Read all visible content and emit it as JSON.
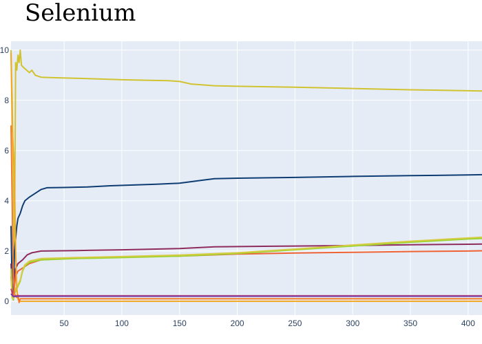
{
  "chart_data": {
    "type": "line",
    "title": "Selenium",
    "xlabel": "",
    "ylabel": "",
    "xlim": [
      4,
      412
    ],
    "ylim": [
      -0.55,
      10.35
    ],
    "grid": true,
    "x_ticks": [
      50,
      100,
      150,
      200,
      250,
      300,
      350,
      400
    ],
    "y_ticks": [
      0,
      2,
      4,
      6,
      8,
      10
    ],
    "colors": {
      "plot_bg": "#e5ecf6",
      "grid": "#ffffff",
      "tick_text": "#2a3f5f"
    },
    "series": [
      {
        "color": "#d1c32f",
        "points": [
          [
            4,
            10
          ],
          [
            5,
            8
          ],
          [
            6,
            5
          ],
          [
            7,
            2
          ],
          [
            8,
            9.5
          ],
          [
            9,
            9.2
          ],
          [
            10,
            9.8
          ],
          [
            11,
            9.5
          ],
          [
            12,
            10
          ],
          [
            13,
            9.4
          ],
          [
            15,
            9.3
          ],
          [
            20,
            9.1
          ],
          [
            22,
            9.2
          ],
          [
            25,
            9.0
          ],
          [
            28,
            8.95
          ],
          [
            30,
            8.92
          ],
          [
            40,
            8.9
          ],
          [
            60,
            8.88
          ],
          [
            80,
            8.85
          ],
          [
            100,
            8.82
          ],
          [
            120,
            8.8
          ],
          [
            140,
            8.78
          ],
          [
            150,
            8.75
          ],
          [
            160,
            8.65
          ],
          [
            180,
            8.58
          ],
          [
            200,
            8.56
          ],
          [
            250,
            8.52
          ],
          [
            300,
            8.47
          ],
          [
            350,
            8.42
          ],
          [
            400,
            8.38
          ],
          [
            412,
            8.37
          ]
        ]
      },
      {
        "color": "#0d3c73",
        "points": [
          [
            4,
            3
          ],
          [
            5,
            0.5
          ],
          [
            6,
            0.15
          ],
          [
            7,
            2
          ],
          [
            8,
            2.5
          ],
          [
            9,
            3
          ],
          [
            10,
            3.3
          ],
          [
            12,
            3.5
          ],
          [
            14,
            3.8
          ],
          [
            16,
            4.0
          ],
          [
            20,
            4.15
          ],
          [
            25,
            4.3
          ],
          [
            30,
            4.45
          ],
          [
            35,
            4.52
          ],
          [
            50,
            4.53
          ],
          [
            70,
            4.55
          ],
          [
            90,
            4.6
          ],
          [
            110,
            4.63
          ],
          [
            130,
            4.66
          ],
          [
            150,
            4.7
          ],
          [
            170,
            4.82
          ],
          [
            180,
            4.88
          ],
          [
            200,
            4.9
          ],
          [
            250,
            4.93
          ],
          [
            300,
            4.97
          ],
          [
            350,
            5.0
          ],
          [
            400,
            5.03
          ],
          [
            412,
            5.04
          ]
        ]
      },
      {
        "color": "#8e2b5c",
        "points": [
          [
            4,
            1.5
          ],
          [
            5,
            0.3
          ],
          [
            6,
            0.1
          ],
          [
            7,
            1.0
          ],
          [
            8,
            1.3
          ],
          [
            10,
            1.5
          ],
          [
            14,
            1.65
          ],
          [
            18,
            1.85
          ],
          [
            22,
            1.93
          ],
          [
            30,
            2.0
          ],
          [
            60,
            2.02
          ],
          [
            100,
            2.05
          ],
          [
            150,
            2.1
          ],
          [
            180,
            2.17
          ],
          [
            250,
            2.2
          ],
          [
            300,
            2.22
          ],
          [
            350,
            2.25
          ],
          [
            400,
            2.27
          ],
          [
            412,
            2.28
          ]
        ]
      },
      {
        "color": "#ef6234",
        "points": [
          [
            4,
            1
          ],
          [
            5,
            0.2
          ],
          [
            6,
            0.05
          ],
          [
            7,
            0.6
          ],
          [
            8,
            1.0
          ],
          [
            10,
            1.2
          ],
          [
            15,
            1.35
          ],
          [
            20,
            1.5
          ],
          [
            30,
            1.65
          ],
          [
            60,
            1.72
          ],
          [
            100,
            1.76
          ],
          [
            150,
            1.8
          ],
          [
            200,
            1.88
          ],
          [
            250,
            1.92
          ],
          [
            300,
            1.95
          ],
          [
            350,
            1.98
          ],
          [
            400,
            2.0
          ],
          [
            412,
            2.01
          ]
        ]
      },
      {
        "color": "#9bd32f",
        "points": [
          [
            4,
            1.2
          ],
          [
            5,
            0.15
          ],
          [
            6,
            0.05
          ],
          [
            7,
            0.3
          ],
          [
            8,
            0.4
          ],
          [
            10,
            0.6
          ],
          [
            12,
            0.8
          ],
          [
            14,
            1.2
          ],
          [
            16,
            1.4
          ],
          [
            20,
            1.55
          ],
          [
            30,
            1.65
          ],
          [
            60,
            1.7
          ],
          [
            100,
            1.74
          ],
          [
            150,
            1.8
          ],
          [
            200,
            1.9
          ],
          [
            250,
            2.05
          ],
          [
            300,
            2.2
          ],
          [
            350,
            2.35
          ],
          [
            400,
            2.48
          ],
          [
            412,
            2.5
          ]
        ]
      },
      {
        "color": "#d6cc43",
        "points": [
          [
            4,
            1.3
          ],
          [
            5,
            0.2
          ],
          [
            6,
            0.1
          ],
          [
            7,
            0.35
          ],
          [
            8,
            0.5
          ],
          [
            10,
            0.65
          ],
          [
            12,
            0.85
          ],
          [
            14,
            1.25
          ],
          [
            16,
            1.45
          ],
          [
            20,
            1.6
          ],
          [
            30,
            1.7
          ],
          [
            60,
            1.74
          ],
          [
            100,
            1.78
          ],
          [
            150,
            1.84
          ],
          [
            200,
            1.93
          ],
          [
            250,
            2.08
          ],
          [
            300,
            2.24
          ],
          [
            350,
            2.39
          ],
          [
            400,
            2.52
          ],
          [
            412,
            2.55
          ]
        ]
      },
      {
        "color": "#f5a623",
        "points": [
          [
            4,
            9.9
          ],
          [
            5,
            7
          ],
          [
            6,
            6.0
          ],
          [
            7,
            5.0
          ],
          [
            8,
            2.0
          ],
          [
            9,
            0.5
          ],
          [
            10,
            0.1
          ],
          [
            11,
            0.0
          ],
          [
            12,
            0.0
          ],
          [
            50,
            0.0
          ],
          [
            150,
            0.0
          ],
          [
            300,
            0.0
          ],
          [
            412,
            0.0
          ]
        ]
      },
      {
        "color": "#f27c2a",
        "points": [
          [
            4,
            7
          ],
          [
            5,
            4
          ],
          [
            6,
            1
          ],
          [
            7,
            0.3
          ],
          [
            9,
            0.15
          ],
          [
            10,
            0.25
          ],
          [
            11,
            -0.05
          ],
          [
            12,
            0.1
          ],
          [
            50,
            0.1
          ],
          [
            412,
            0.1
          ]
        ]
      },
      {
        "color": "#c83e6d",
        "points": [
          [
            4,
            0.5
          ],
          [
            6,
            0.2
          ],
          [
            8,
            0.22
          ],
          [
            12,
            0.22
          ],
          [
            50,
            0.22
          ],
          [
            150,
            0.22
          ],
          [
            300,
            0.22
          ],
          [
            412,
            0.22
          ]
        ]
      },
      {
        "color": "#7a3fa0",
        "points": [
          [
            4,
            0.3
          ],
          [
            6,
            0.18
          ],
          [
            10,
            0.2
          ],
          [
            50,
            0.2
          ],
          [
            412,
            0.2
          ]
        ]
      }
    ]
  }
}
